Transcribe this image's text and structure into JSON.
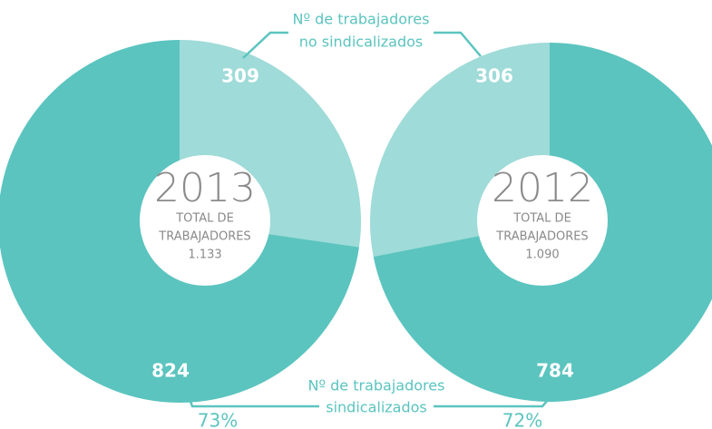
{
  "chart_data": [
    {
      "type": "pie",
      "title": "2013",
      "center_label": [
        "TOTAL DE",
        "TRABAJADORES"
      ],
      "total": {
        "value": 1133,
        "label": "1.133"
      },
      "values": [
        309,
        824
      ],
      "colors": [
        "#9fdbd8",
        "#5bc4bf"
      ],
      "direction": "clockwise",
      "annotations": [
        {
          "value": 73,
          "label": "73%"
        }
      ]
    },
    {
      "type": "pie",
      "title": "2012",
      "center_label": [
        "TOTAL DE",
        "TRABAJADORES"
      ],
      "total": {
        "value": 1090,
        "label": "1.090"
      },
      "values": [
        306,
        784
      ],
      "colors": [
        "#9fdbd8",
        "#5bc4bf"
      ],
      "direction": "counterclockwise",
      "annotations": [
        {
          "value": 72,
          "label": "72%"
        }
      ]
    }
  ],
  "legend": [
    [
      "Nº de trabajadores",
      "no sindicalizados"
    ],
    [
      "Nº de trabajadores",
      "sindicalizados"
    ]
  ]
}
